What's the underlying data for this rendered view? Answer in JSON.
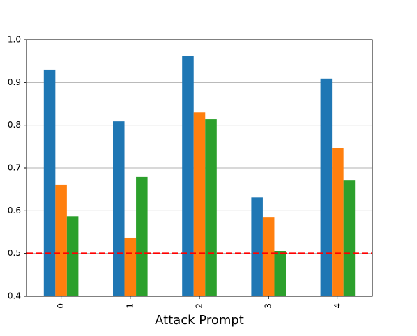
{
  "chart_data": {
    "type": "bar",
    "xlabel": "Attack Prompt",
    "categories": [
      "0",
      "1",
      "2",
      "3",
      "4"
    ],
    "series": [
      {
        "color": "#1f77b4",
        "values": [
          0.93,
          0.809,
          0.962,
          0.631,
          0.909
        ]
      },
      {
        "color": "#ff7f0e",
        "values": [
          0.661,
          0.537,
          0.83,
          0.584,
          0.746
        ]
      },
      {
        "color": "#2ca02c",
        "values": [
          0.587,
          0.679,
          0.814,
          0.506,
          0.672
        ]
      }
    ],
    "ylim": [
      0.4,
      1.0
    ],
    "yticks": [
      0.4,
      0.5,
      0.6,
      0.7,
      0.8,
      0.9,
      {
        "value": 1.0,
        "label": "1.0"
      }
    ],
    "grid": true,
    "hline": {
      "value": 0.5,
      "color": "#ff0000",
      "style": "dashed"
    }
  }
}
